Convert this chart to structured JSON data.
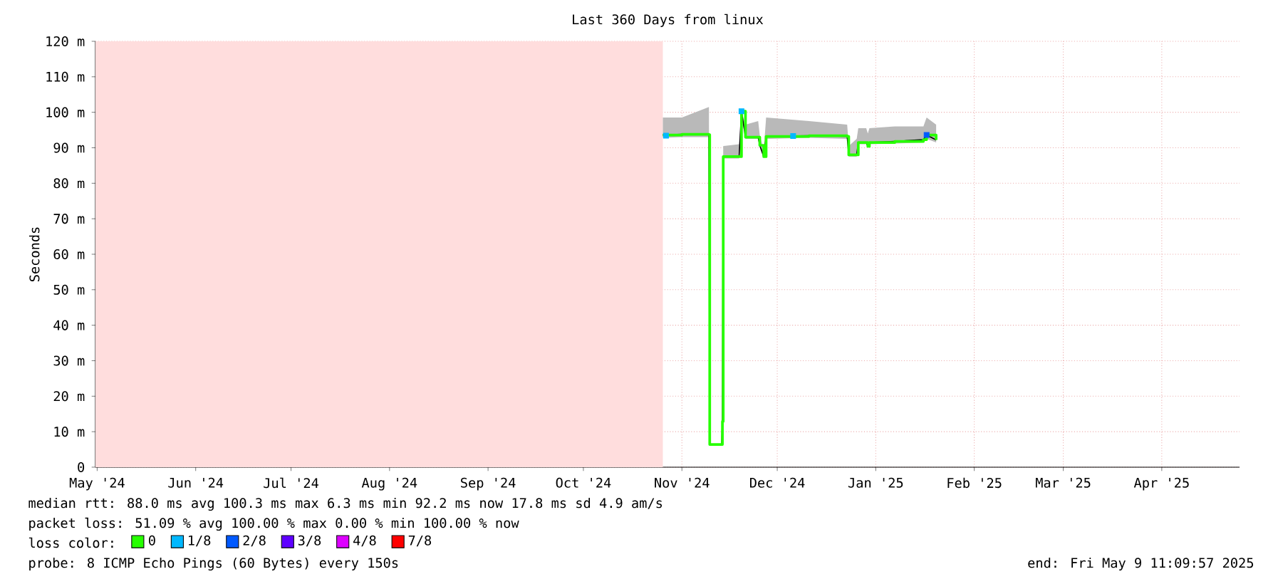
{
  "chart_data": {
    "type": "line",
    "title": "Last 360 Days from linux",
    "ylabel": "Seconds",
    "xlim": [
      "2024-05-14T11:09",
      "2025-05-09T11:09"
    ],
    "xticks": [
      {
        "value": "2024-05-15",
        "label": "May '24"
      },
      {
        "value": "2024-06-15",
        "label": "Jun '24"
      },
      {
        "value": "2024-07-15",
        "label": "Jul '24"
      },
      {
        "value": "2024-08-15",
        "label": "Aug '24"
      },
      {
        "value": "2024-09-15",
        "label": "Sep '24"
      },
      {
        "value": "2024-10-15",
        "label": "Oct '24"
      },
      {
        "value": "2024-11-15",
        "label": "Nov '24"
      },
      {
        "value": "2024-12-15",
        "label": "Dec '24"
      },
      {
        "value": "2025-01-15",
        "label": "Jan '25"
      },
      {
        "value": "2025-02-15",
        "label": "Feb '25"
      },
      {
        "value": "2025-03-15",
        "label": "Mar '25"
      },
      {
        "value": "2025-04-15",
        "label": "Apr '25"
      }
    ],
    "ylim": [
      0,
      120
    ],
    "yticks": [
      0,
      {
        "value": 10,
        "label": "10 m"
      },
      {
        "value": 20,
        "label": "20 m"
      },
      {
        "value": 30,
        "label": "30 m"
      },
      {
        "value": 40,
        "label": "40 m"
      },
      {
        "value": 50,
        "label": "50 m"
      },
      {
        "value": 60,
        "label": "60 m"
      },
      {
        "value": 70,
        "label": "70 m"
      },
      {
        "value": 80,
        "label": "80 m"
      },
      {
        "value": 90,
        "label": "90 m"
      },
      {
        "value": 100,
        "label": "100 m"
      },
      {
        "value": 110,
        "label": "110 m"
      },
      {
        "value": 120,
        "label": "120 m"
      }
    ],
    "grid": true,
    "legend": "bottom left",
    "legend_title": "loss color:",
    "bands": [
      {
        "axis": "x",
        "from": "2024-05-14T11:09",
        "to": "2024-11-09",
        "color": "#ffdddd"
      }
    ],
    "series": [
      {
        "name": "0",
        "color": "#26ff00",
        "x": [
          "2024-11-09",
          "2024-11-15",
          "2024-11-23T12:00",
          "2024-11-23T18:00",
          "2024-11-27T12:00",
          "2024-11-27T18:00",
          "2024-11-28",
          "2024-12-03",
          "2024-12-03T18:00",
          "2024-12-05",
          "2024-12-09",
          "2024-12-09T12:00",
          "2024-12-10T18:00",
          "2024-12-11T12:00",
          "2024-12-25",
          "2025-01-06",
          "2025-01-06T12:00",
          "2025-01-09",
          "2025-01-09T12:00",
          "2025-01-12",
          "2025-01-12T12:00",
          "2025-01-13",
          "2025-01-21",
          "2025-01-30",
          "2025-01-31",
          "2025-02-03"
        ],
        "values": [
          93.6,
          93.8,
          93.7,
          6.4,
          6.4,
          12.9,
          87.5,
          87.5,
          100.3,
          93,
          93,
          90.7,
          87.5,
          93.2,
          93.4,
          93.2,
          88,
          88,
          91.5,
          91.5,
          90.4,
          91.5,
          91.8,
          92.3,
          93.6,
          92.2
        ],
        "lower": [
          92.8,
          93,
          93,
          6.4,
          6.4,
          12.9,
          87,
          87,
          99.5,
          92.5,
          92.5,
          90,
          87,
          92.5,
          92.8,
          92.5,
          87.5,
          87.5,
          91,
          91,
          90,
          91,
          91.2,
          91.5,
          92.5,
          91.5
        ],
        "upper": [
          98.5,
          98.5,
          101.5,
          6.4,
          6.4,
          12.9,
          90.5,
          91,
          100.3,
          96.5,
          97.5,
          93.5,
          89.5,
          98.5,
          97.5,
          96.5,
          90.5,
          92.5,
          95.5,
          95.5,
          94,
          95.5,
          96,
          96,
          98.5,
          96.5
        ]
      },
      {
        "name": "1/8",
        "color": "#00b8ff",
        "type": "scatter",
        "marker": "square",
        "x": [
          "2024-11-10",
          "2024-12-03T18:00",
          "2024-12-20"
        ],
        "values": [
          93.4,
          100.3,
          93.3
        ]
      },
      {
        "name": "2/8",
        "color": "#0059ff",
        "type": "scatter",
        "marker": "square",
        "x": [
          "2025-01-31"
        ],
        "values": [
          93.6
        ]
      },
      {
        "name": "3/8",
        "color": "#5e00ff",
        "type": "scatter",
        "marker": "square"
      },
      {
        "name": "4/8",
        "color": "#dd00ff",
        "type": "scatter",
        "marker": "square"
      },
      {
        "name": "7/8",
        "color": "#ff0000",
        "type": "scatter",
        "marker": "square"
      }
    ],
    "annotations": [
      "median rtt:  88.0 ms avg  100.3 ms max  6.3 ms min  92.2 ms now  17.8 ms sd  4.9   am/s",
      "packet loss: 51.09 % avg  100.00 % max  0.00 % min  100.00 % now",
      "probe:       8 ICMP Echo Pings (60 Bytes) every 150s",
      "end: Fri May  9 11:09:57 2025"
    ]
  }
}
